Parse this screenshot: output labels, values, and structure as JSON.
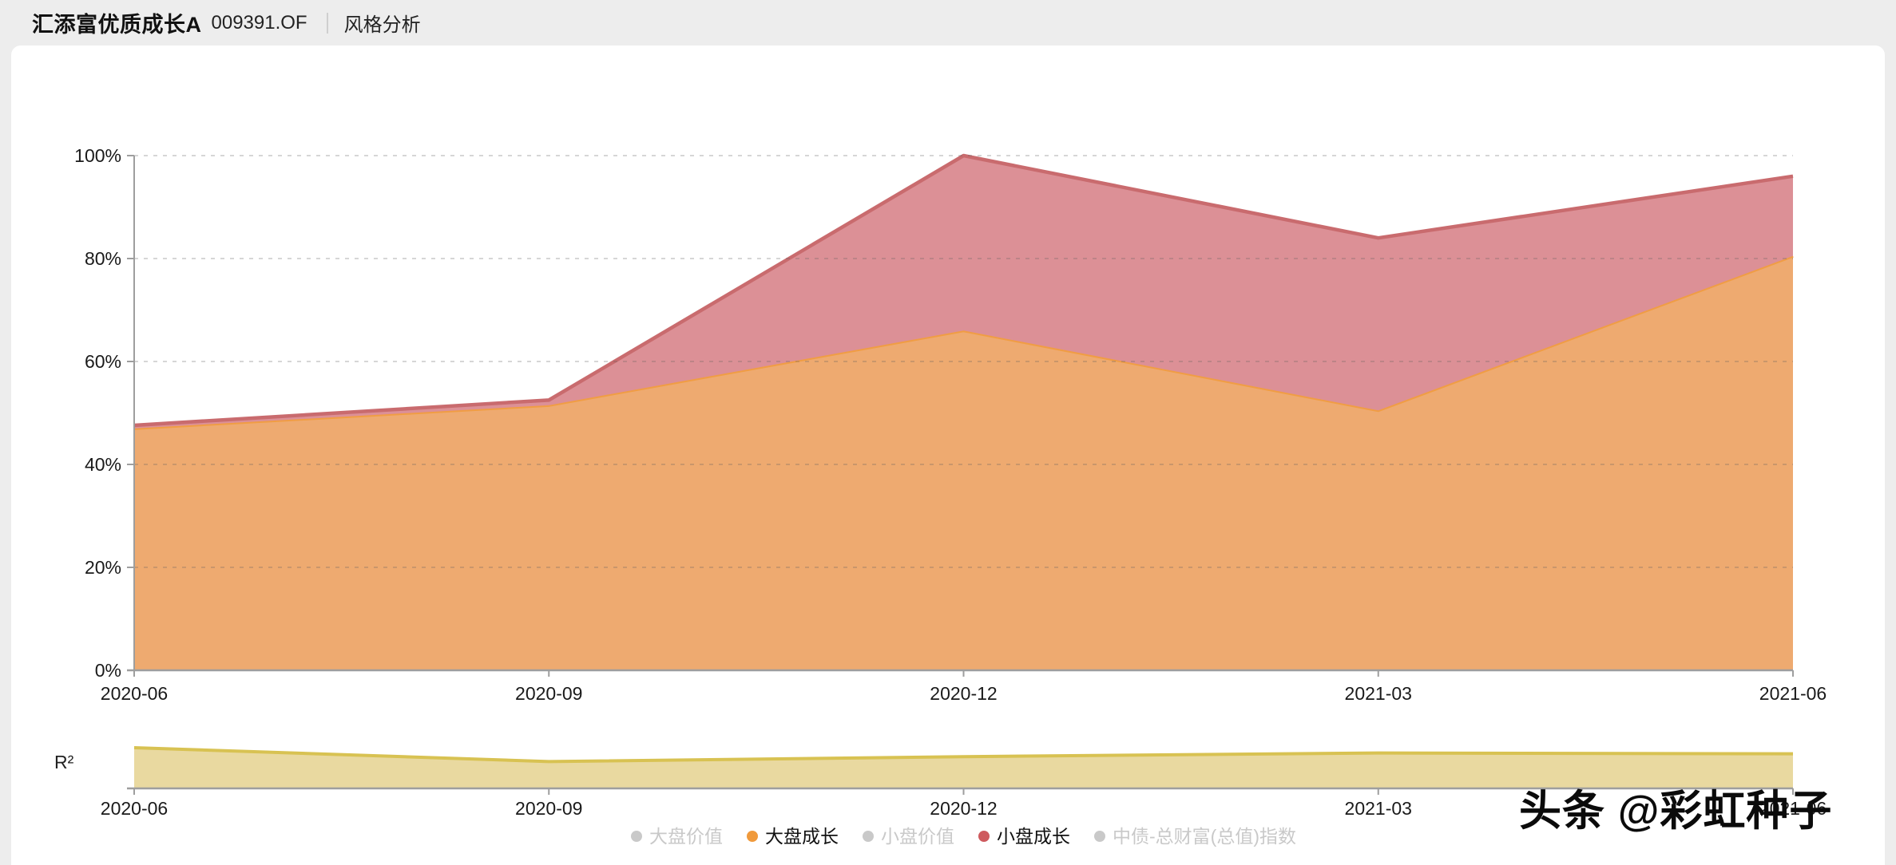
{
  "header": {
    "fund_name": "汇添富优质成长A",
    "fund_code": "009391.OF",
    "page_title": "风格分析"
  },
  "watermark": "头条 @彩虹种子",
  "colors": {
    "page_background": "#ededed",
    "card_background": "#ffffff",
    "axis": "#9e9e9e",
    "gridline": "rgba(90,90,90,0.25)",
    "tick_label": "#1a1a1a",
    "legend_inactive": "#c9c9c9",
    "legend_active_text": "#111111"
  },
  "chart_data": [
    {
      "id": "style-stacked-area",
      "type": "area",
      "stacked": true,
      "title": "",
      "x": [
        "2020-06",
        "2020-09",
        "2020-12",
        "2021-03",
        "2021-06"
      ],
      "series": [
        {
          "name": "大盘成长",
          "values": [
            47,
            51.5,
            66,
            50.5,
            80.5
          ],
          "cumulative_top": [
            47,
            51.5,
            66,
            50.5,
            80.5
          ],
          "fill": "#eeaa70",
          "stroke": "#f09d44"
        },
        {
          "name": "小盘成长",
          "values": [
            0.6,
            1,
            34,
            33.5,
            15.5
          ],
          "cumulative_top": [
            47.6,
            52.5,
            100,
            84,
            96
          ],
          "fill": "#dc9096",
          "stroke": "#c96b6e"
        }
      ],
      "ylabel": "",
      "yticks": [
        "0%",
        "20%",
        "40%",
        "60%",
        "80%",
        "100%"
      ],
      "ylim": [
        0,
        100
      ],
      "grid": "horizontal-dashed",
      "legend_position": "bottom"
    },
    {
      "id": "r-squared",
      "type": "area",
      "title": "R²",
      "x": [
        "2020-06",
        "2020-09",
        "2020-12",
        "2021-03",
        "2021-06"
      ],
      "values": [
        1.0,
        0.66,
        0.78,
        0.87,
        0.85
      ],
      "fill": "#e9d9a0",
      "stroke": "#d8c252",
      "ylim": [
        0,
        1
      ],
      "yaxis": "unlabeled",
      "grid": "off"
    }
  ],
  "legend": {
    "items": [
      {
        "key": "large-cap-value",
        "label": "大盘价值",
        "color": "#c9c9c9",
        "active": false
      },
      {
        "key": "large-cap-growth",
        "label": "大盘成长",
        "color": "#f09a3c",
        "active": true
      },
      {
        "key": "small-cap-value",
        "label": "小盘价值",
        "color": "#c9c9c9",
        "active": false
      },
      {
        "key": "small-cap-growth",
        "label": "小盘成长",
        "color": "#ce5a5e",
        "active": true
      },
      {
        "key": "chinabond-total-wealth-index",
        "label": "中债-总财富(总值)指数",
        "color": "#c9c9c9",
        "active": false
      }
    ]
  }
}
